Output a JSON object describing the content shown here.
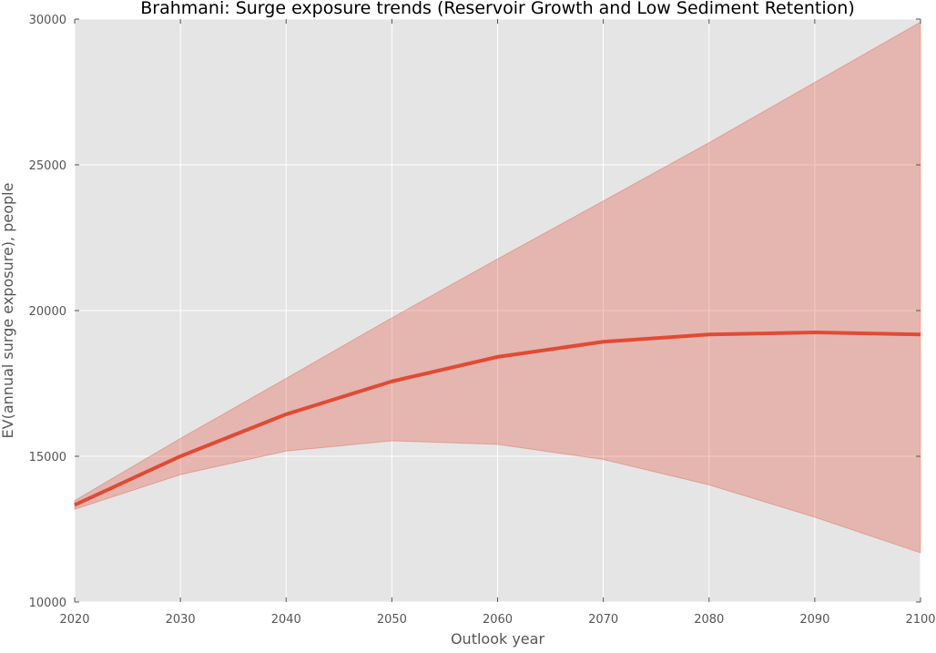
{
  "chart_data": {
    "type": "line",
    "title": "Brahmani: Surge exposure trends (Reservoir Growth and Low Sediment Retention)",
    "xlabel": "Outlook year",
    "ylabel": "EV(annual surge exposure), people",
    "xlim": [
      2020,
      2100
    ],
    "ylim": [
      10000,
      30000
    ],
    "x_ticks": [
      "2020",
      "2030",
      "2040",
      "2050",
      "2060",
      "2070",
      "2080",
      "2090",
      "2100"
    ],
    "y_ticks": [
      "10000",
      "15000",
      "20000",
      "25000",
      "30000"
    ],
    "grid": true,
    "legend": "none",
    "x": [
      2020,
      2030,
      2040,
      2050,
      2060,
      2070,
      2080,
      2090,
      2100
    ],
    "series": [
      {
        "values": [
          13330,
          15000,
          16440,
          17570,
          18410,
          18930,
          19180,
          19250,
          19180
        ],
        "color": "#e24a33"
      }
    ],
    "band": {
      "lower": [
        13180,
        14370,
        15180,
        15530,
        15410,
        14890,
        14020,
        12910,
        11690
      ],
      "upper": [
        13480,
        15610,
        17670,
        19750,
        21770,
        23760,
        25760,
        27830,
        29900
      ],
      "color": "#e24a33",
      "opacity": 0.3
    },
    "colors": {
      "plot_background": "#e5e5e5",
      "grid": "#ffffff",
      "line": "#e24a33"
    }
  }
}
